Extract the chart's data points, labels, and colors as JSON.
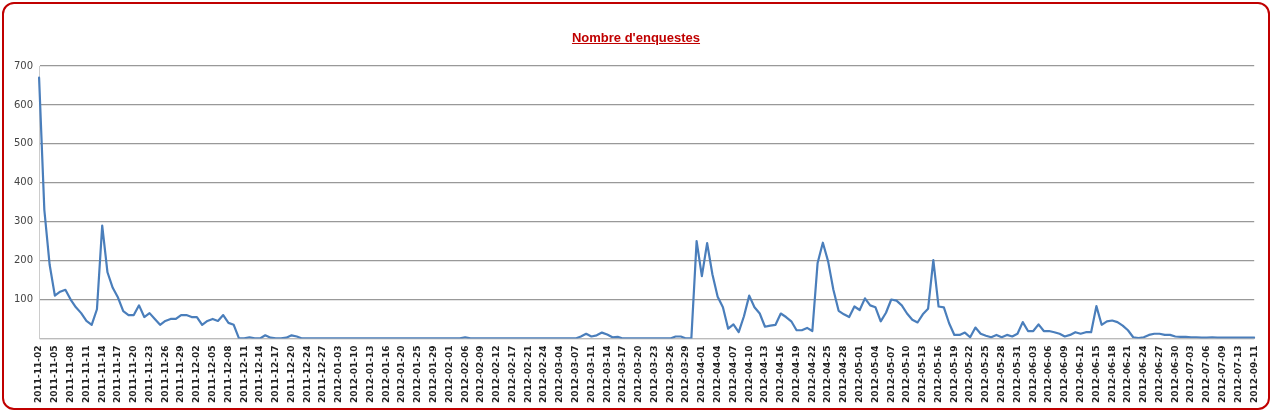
{
  "chart_data": {
    "type": "line",
    "title": "Nombre d'enquestes",
    "categories": [
      "2011-11-02",
      null,
      null,
      "2011-11-05",
      null,
      null,
      "2011-11-08",
      null,
      null,
      "2011-11-11",
      null,
      null,
      "2011-11-14",
      null,
      null,
      "2011-11-17",
      null,
      null,
      "2011-11-20",
      null,
      null,
      "2011-11-23",
      null,
      null,
      "2011-11-26",
      null,
      null,
      "2011-11-29",
      null,
      null,
      "2011-12-02",
      null,
      null,
      "2011-12-05",
      null,
      null,
      "2011-12-08",
      null,
      null,
      "2011-12-11",
      null,
      null,
      "2011-12-14",
      null,
      null,
      "2011-12-17",
      null,
      null,
      "2011-12-20",
      null,
      null,
      "2011-12-24",
      null,
      null,
      "2011-12-27",
      null,
      null,
      "2012-01-03",
      null,
      null,
      "2012-01-10",
      null,
      null,
      "2012-01-13",
      null,
      null,
      "2012-01-16",
      null,
      null,
      "2012-01-20",
      null,
      null,
      "2012-01-25",
      null,
      null,
      "2012-01-29",
      null,
      null,
      "2012-02-01",
      null,
      null,
      "2012-02-06",
      null,
      null,
      "2012-02-09",
      null,
      null,
      "2012-02-12",
      null,
      null,
      "2012-02-17",
      null,
      null,
      "2012-02-21",
      null,
      null,
      "2012-02-24",
      null,
      null,
      "2012-03-04",
      null,
      null,
      "2012-03-07",
      null,
      null,
      "2012-03-11",
      null,
      null,
      "2012-03-14",
      null,
      null,
      "2012-03-17",
      null,
      null,
      "2012-03-20",
      null,
      null,
      "2012-03-23",
      null,
      null,
      "2012-03-26",
      null,
      null,
      "2012-03-29",
      null,
      null,
      "2012-04-01",
      null,
      null,
      "2012-04-04",
      null,
      null,
      "2012-04-07",
      null,
      null,
      "2012-04-10",
      null,
      null,
      "2012-04-13",
      null,
      null,
      "2012-04-16",
      null,
      null,
      "2012-04-19",
      null,
      null,
      "2012-04-22",
      null,
      null,
      "2012-04-25",
      null,
      null,
      "2012-04-28",
      null,
      null,
      "2012-05-01",
      null,
      null,
      "2012-05-04",
      null,
      null,
      "2012-05-07",
      null,
      null,
      "2012-05-10",
      null,
      null,
      "2012-05-13",
      null,
      null,
      "2012-05-16",
      null,
      null,
      "2012-05-19",
      null,
      null,
      "2012-05-22",
      null,
      null,
      "2012-05-25",
      null,
      null,
      "2012-05-28",
      null,
      null,
      "2012-05-31",
      null,
      null,
      "2012-06-03",
      null,
      null,
      "2012-06-06",
      null,
      null,
      "2012-06-09",
      null,
      null,
      "2012-06-12",
      null,
      null,
      "2012-06-15",
      null,
      null,
      "2012-06-18",
      null,
      null,
      "2012-06-21",
      null,
      null,
      "2012-06-24",
      null,
      null,
      "2012-06-27",
      null,
      null,
      "2012-06-30",
      null,
      null,
      "2012-07-03",
      null,
      null,
      "2012-07-06",
      null,
      null,
      "2012-07-09",
      null,
      null,
      "2012-07-13",
      null,
      null,
      "2012-09-11"
    ],
    "series": [
      {
        "color": "#4a7ebb",
        "values": [
          670,
          330,
          190,
          110,
          120,
          125,
          100,
          80,
          65,
          45,
          35,
          75,
          290,
          170,
          130,
          105,
          70,
          60,
          60,
          85,
          55,
          65,
          50,
          35,
          45,
          50,
          50,
          60,
          60,
          55,
          55,
          35,
          45,
          50,
          45,
          60,
          40,
          35,
          0,
          0,
          3,
          0,
          0,
          8,
          2,
          0,
          0,
          2,
          8,
          5,
          0,
          0,
          0,
          0,
          0,
          0,
          0,
          0,
          0,
          0,
          0,
          0,
          0,
          0,
          0,
          0,
          0,
          0,
          0,
          0,
          0,
          0,
          0,
          0,
          0,
          0,
          0,
          0,
          0,
          0,
          0,
          3,
          0,
          0,
          0,
          0,
          0,
          0,
          0,
          0,
          0,
          0,
          0,
          0,
          0,
          0,
          0,
          0,
          0,
          0,
          0,
          0,
          0,
          5,
          12,
          5,
          8,
          15,
          10,
          3,
          4,
          0,
          0,
          0,
          0,
          0,
          0,
          0,
          0,
          0,
          0,
          5,
          5,
          0,
          0,
          250,
          160,
          245,
          165,
          107,
          80,
          25,
          36,
          16,
          57,
          110,
          80,
          64,
          30,
          33,
          35,
          64,
          55,
          44,
          21,
          21,
          27,
          19,
          194,
          246,
          198,
          125,
          71,
          62,
          55,
          82,
          73,
          103,
          85,
          80,
          44,
          66,
          100,
          97,
          85,
          64,
          48,
          41,
          62,
          76,
          201,
          82,
          80,
          39,
          9,
          9,
          15,
          3,
          28,
          12,
          7,
          3,
          9,
          3,
          9,
          5,
          12,
          42,
          19,
          19,
          36,
          19,
          19,
          16,
          12,
          5,
          9,
          16,
          12,
          16,
          16,
          83,
          35,
          44,
          46,
          42,
          33,
          21,
          3,
          1,
          3,
          9,
          12,
          12,
          9,
          9,
          5,
          4,
          4,
          3,
          3,
          2,
          2,
          3,
          2,
          2,
          2,
          2,
          2,
          2,
          2,
          2
        ]
      }
    ],
    "ylim": [
      0,
      700
    ],
    "yticks": [
      {
        "value": 0,
        "label": null
      },
      100,
      200,
      300,
      400,
      500,
      600,
      700
    ],
    "grid": "y",
    "marker": "none",
    "line_style": "solid"
  }
}
